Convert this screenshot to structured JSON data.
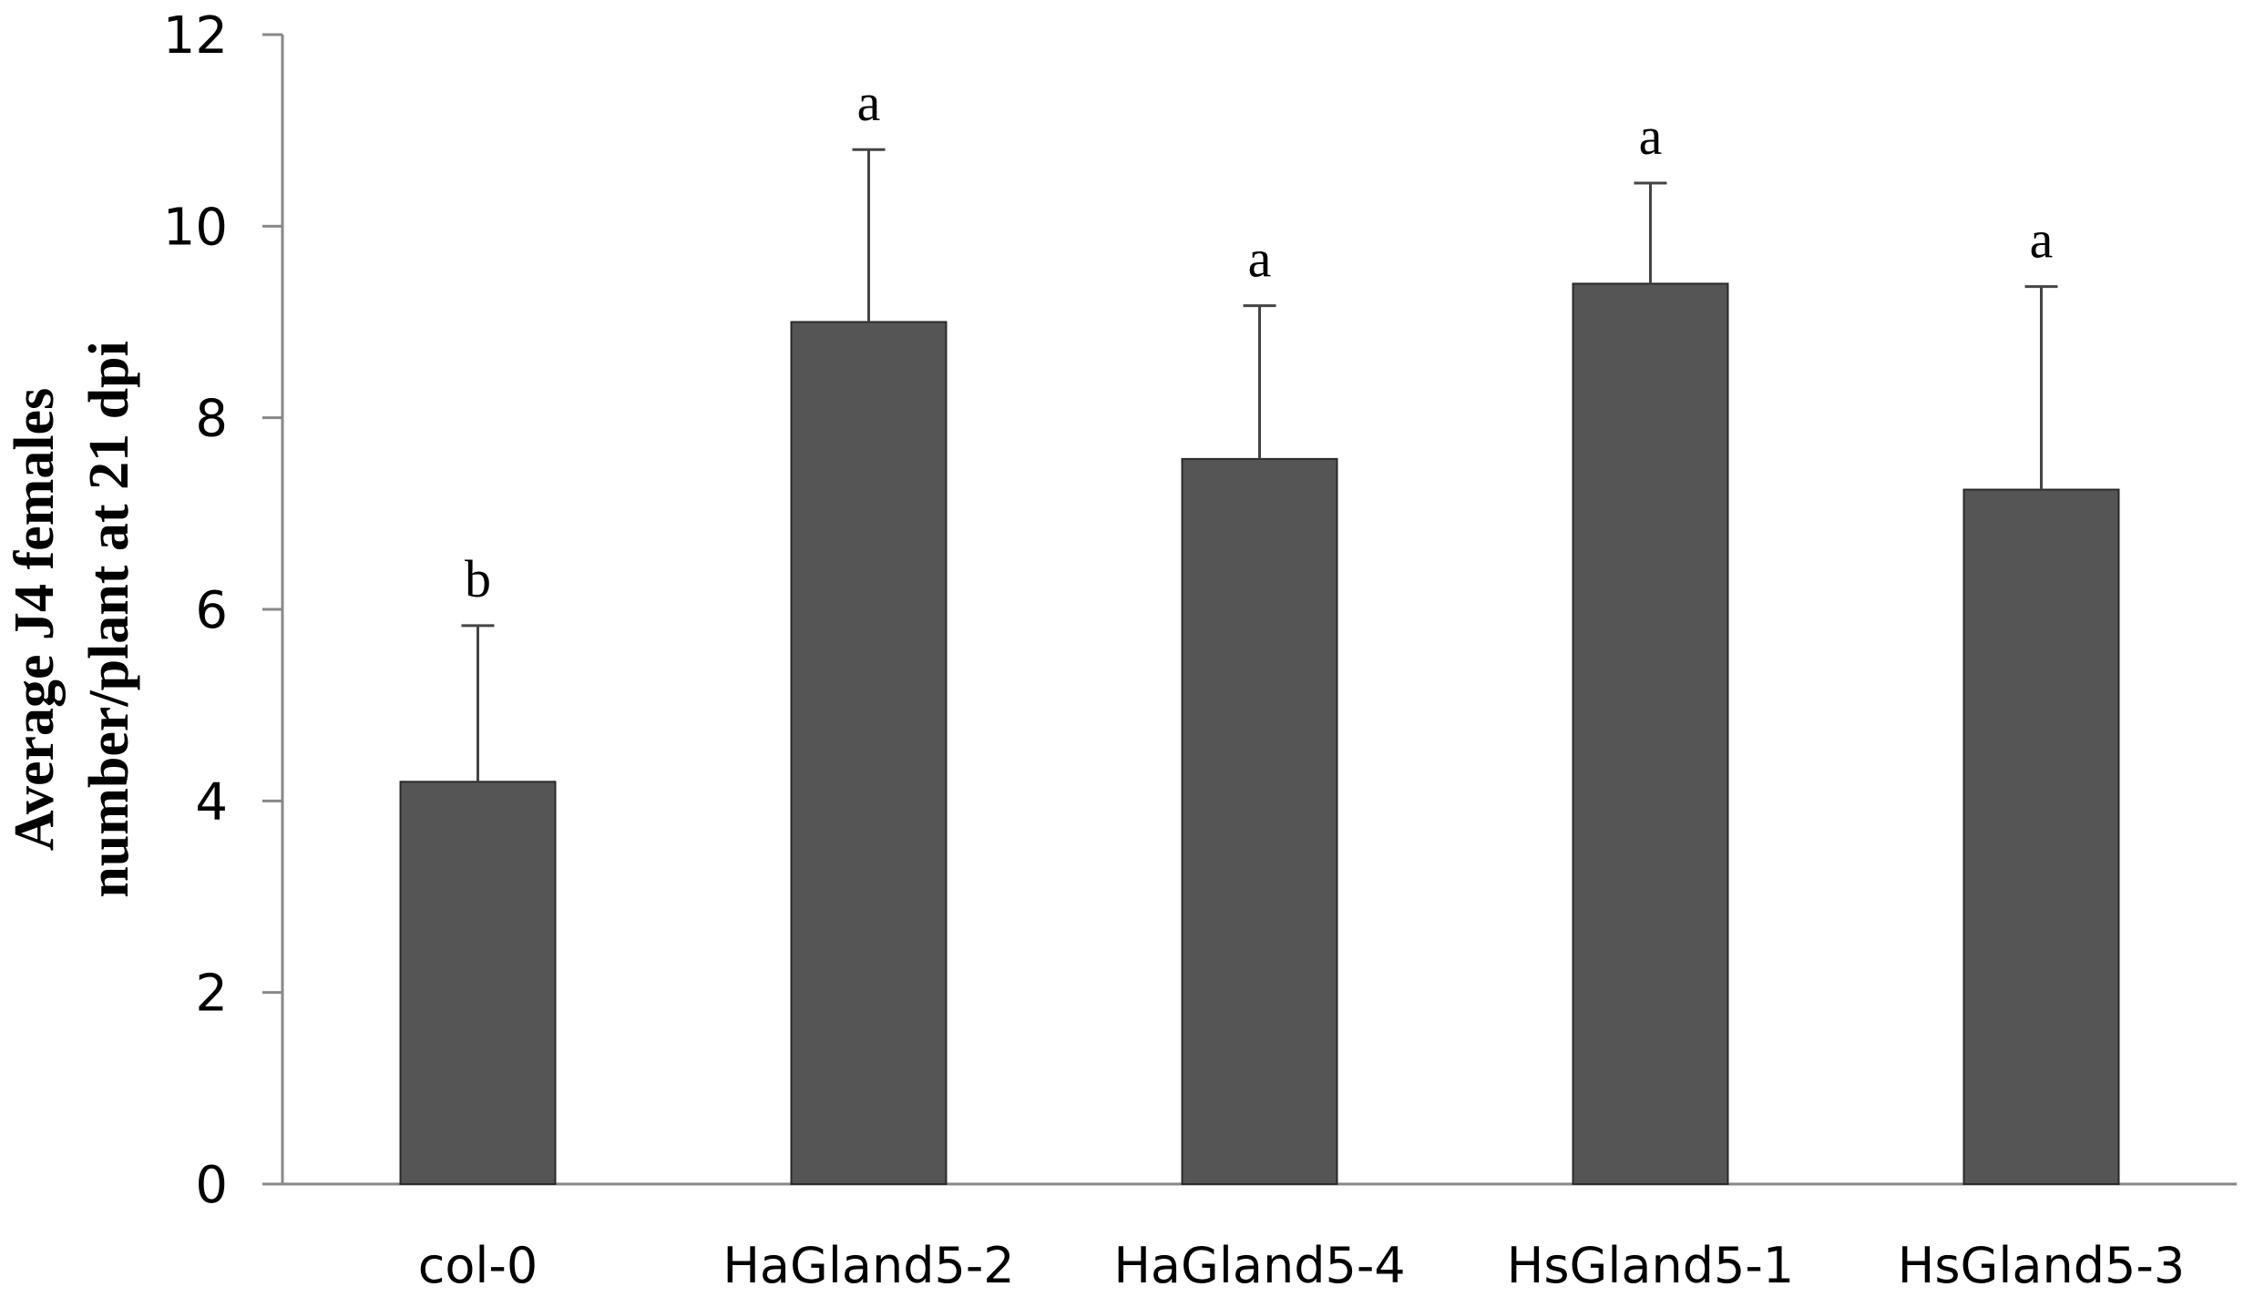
{
  "chart_data": {
    "type": "bar",
    "categories": [
      "col-0",
      "HaGland5-2",
      "HaGland5-4",
      "HsGland5-1",
      "HsGland5-3"
    ],
    "values": [
      4.2,
      9.0,
      7.57,
      9.4,
      7.25
    ],
    "error": [
      1.63,
      1.8,
      1.6,
      1.05,
      2.12
    ],
    "significance": [
      "b",
      "a",
      "a",
      "a",
      "a"
    ],
    "ylabel_lines": [
      "Average J4 females",
      "number/plant  at 21 dpi"
    ],
    "xlabel": "",
    "ylim": [
      0,
      12
    ],
    "yticks": [
      "0",
      "2",
      "4",
      "6",
      "8",
      "10",
      "12"
    ],
    "bar_color": "#555555",
    "grid": false,
    "legend": "none"
  }
}
